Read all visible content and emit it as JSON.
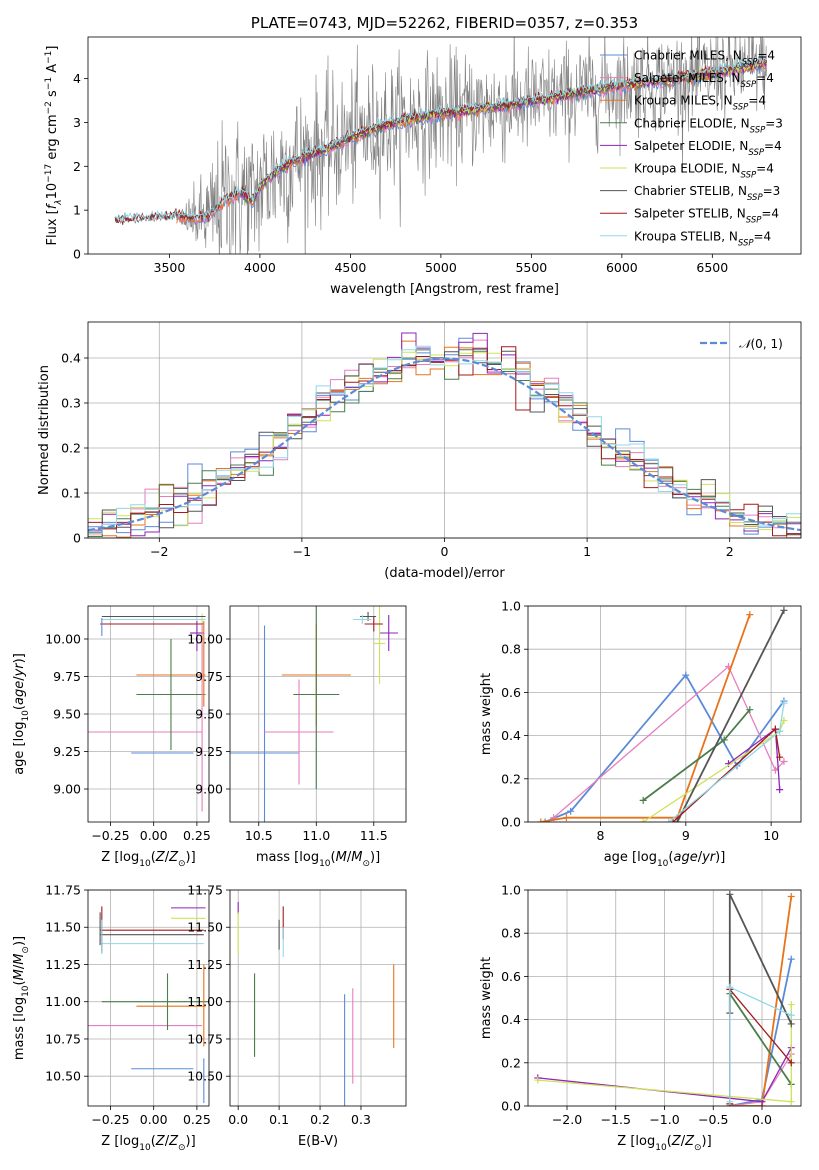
{
  "colors": {
    "Chabrier MILES": "#5b8bd8",
    "Salpeter MILES": "#e67ebd",
    "Kroupa MILES": "#e8731c",
    "Chabrier ELODIE": "#4b7d4b",
    "Salpeter ELODIE": "#8e24b8",
    "Kroupa ELODIE": "#cfe25a",
    "Chabrier STELIB": "#555555",
    "Salpeter STELIB": "#a31b1b",
    "Kroupa STELIB": "#8fd8e8",
    "data": "#808080"
  },
  "chart_data": [
    {
      "type": "line",
      "title": "PLATE=0743, MJD=52262, FIBERID=0357, z=0.353",
      "xlabel": "wavelength [Angstrom, rest frame]",
      "ylabel": "Flux [f_λ 10^-17 erg cm^-2 s^-1 A^-1]",
      "xlim": [
        3050,
        6990
      ],
      "ylim": [
        0,
        4.95
      ],
      "xticks": [
        3500,
        4000,
        4500,
        5000,
        5500,
        6000,
        6500
      ],
      "yticks": [
        0,
        1,
        2,
        3,
        4
      ],
      "legend_position": "upper right",
      "legend": [
        {
          "name": "Chabrier MILES, N_SSP=4",
          "prefix": "Chabrier MILES, N",
          "sub": "SSP",
          "suffix": "=4"
        },
        {
          "name": "Salpeter MILES, N_SSP=4",
          "prefix": "Salpeter MILES, N",
          "sub": "SSP",
          "suffix": "=4"
        },
        {
          "name": "Kroupa MILES, N_SSP=4",
          "prefix": "Kroupa MILES, N",
          "sub": "SSP",
          "suffix": "=4"
        },
        {
          "name": "Chabrier ELODIE, N_SSP=3",
          "prefix": "Chabrier ELODIE, N",
          "sub": "SSP",
          "suffix": "=3"
        },
        {
          "name": "Salpeter ELODIE, N_SSP=4",
          "prefix": "Salpeter ELODIE, N",
          "sub": "SSP",
          "suffix": "=4"
        },
        {
          "name": "Kroupa ELODIE, N_SSP=4",
          "prefix": "Kroupa ELODIE, N",
          "sub": "SSP",
          "suffix": "=4"
        },
        {
          "name": "Chabrier STELIB, N_SSP=3",
          "prefix": "Chabrier STELIB, N",
          "sub": "SSP",
          "suffix": "=3"
        },
        {
          "name": "Salpeter STELIB, N_SSP=4",
          "prefix": "Salpeter STELIB, N",
          "sub": "SSP",
          "suffix": "=4"
        },
        {
          "name": "Kroupa STELIB, N_SSP=4",
          "prefix": "Kroupa STELIB, N",
          "sub": "SSP",
          "suffix": "=4"
        }
      ],
      "model_ranges": {
        "Chabrier MILES": [
          3540,
          6800
        ],
        "Salpeter MILES": [
          3540,
          6800
        ],
        "Kroupa MILES": [
          3540,
          6800
        ],
        "Chabrier ELODIE": [
          3900,
          6800
        ],
        "Salpeter ELODIE": [
          3900,
          6800
        ],
        "Kroupa ELODIE": [
          3900,
          6800
        ],
        "Chabrier STELIB": [
          3200,
          6800
        ],
        "Salpeter STELIB": [
          3200,
          6800
        ],
        "Kroupa STELIB": [
          3200,
          6800
        ]
      },
      "continuum": {
        "x": [
          3200,
          3400,
          3540,
          3650,
          3720,
          3800,
          3900,
          3960,
          4000,
          4100,
          4200,
          4300,
          4400,
          4500,
          4700,
          4860,
          5000,
          5200,
          5400,
          5600,
          5800,
          6000,
          6200,
          6400,
          6600,
          6800
        ],
        "y": [
          0.75,
          0.8,
          0.85,
          0.8,
          0.85,
          1.2,
          1.4,
          1.2,
          1.55,
          1.9,
          2.15,
          2.3,
          2.45,
          2.65,
          2.95,
          3.1,
          3.2,
          3.3,
          3.4,
          3.55,
          3.7,
          3.85,
          3.95,
          4.05,
          4.2,
          4.35
        ]
      },
      "data_range": [
        3200,
        6800
      ],
      "data_noise_sigma": {
        "x": [
          3540,
          3800,
          4500,
          5500,
          6200,
          6800
        ],
        "y": [
          0.02,
          0.9,
          0.75,
          0.6,
          0.55,
          0.5
        ]
      }
    },
    {
      "type": "step",
      "xlabel": "(data-model)/error",
      "ylabel": "Normed distribution",
      "xlim": [
        -2.5,
        2.5
      ],
      "ylim": [
        0,
        0.48
      ],
      "xticks": [
        -2,
        -1,
        0,
        1,
        2
      ],
      "yticks": [
        0.0,
        0.1,
        0.2,
        0.3,
        0.4
      ],
      "grid": true,
      "bin_width": 0.1,
      "legend_position": "upper right",
      "reference": {
        "name": "N(0,1)",
        "color": "#5b8bd8",
        "style": "dashed"
      }
    },
    {
      "type": "errorbar",
      "xlabel": "Z [log10(Z/Z_sun)]",
      "ylabel": "age [log10(age/yr)]",
      "xlim": [
        -0.38,
        0.32
      ],
      "ylim": [
        8.78,
        10.22
      ],
      "xticks": [
        -0.25,
        0.0,
        0.25
      ],
      "xticklabels": [
        "−0.25",
        "0.00",
        "0.25"
      ],
      "yticks": [
        9.0,
        9.25,
        9.5,
        9.75,
        10.0
      ],
      "yticklabels": [
        "9.00",
        "9.25",
        "9.50",
        "9.75",
        "10.00"
      ],
      "grid": true,
      "points": [
        {
          "model": "Chabrier MILES",
          "x": 0.05,
          "xerr": 0.18,
          "y": 9.24,
          "yerr": 0.0
        },
        {
          "model": "Salpeter MILES",
          "x": -0.07,
          "xerr": 0.35,
          "y": 9.38,
          "yerr": 0.0
        },
        {
          "model": "Kroupa MILES",
          "x": 0.1,
          "xerr": 0.2,
          "y": 9.76,
          "yerr": 0.0
        },
        {
          "model": "Chabrier ELODIE",
          "x": 0.1,
          "xerr": 0.2,
          "y": 9.63,
          "yerr": 0.37
        },
        {
          "model": "Salpeter ELODIE",
          "x": 0.25,
          "xerr": 0.04,
          "y": 10.04,
          "yerr": 0.0
        },
        {
          "model": "Kroupa ELODIE",
          "x": 0.28,
          "xerr": 0.0,
          "y": 9.97,
          "yerr": 0.2
        },
        {
          "model": "Chabrier STELIB",
          "x": 0.0,
          "xerr": 0.3,
          "y": 10.15,
          "yerr": 0.0
        },
        {
          "model": "Salpeter STELIB",
          "x": -0.01,
          "xerr": 0.3,
          "y": 10.1,
          "yerr": 0.0
        },
        {
          "model": "Kroupa STELIB",
          "x": 0.0,
          "xerr": 0.3,
          "y": 10.13,
          "yerr": 0.0
        }
      ],
      "extra_vlines": [
        {
          "model": "Chabrier MILES",
          "x": -0.3,
          "y0": 10.02,
          "y1": 10.14
        },
        {
          "model": "Salpeter MILES",
          "x": 0.28,
          "y0": 8.85,
          "y1": 10.1
        },
        {
          "model": "Kroupa MILES",
          "x": 0.29,
          "y0": 9.55,
          "y1": 10.12
        },
        {
          "model": "Salpeter ELODIE",
          "x": 0.25,
          "y0": 9.92,
          "y1": 10.12
        }
      ]
    },
    {
      "type": "errorbar",
      "xlabel": "mass [log10(M/M_sun)]",
      "xlim": [
        10.25,
        11.78
      ],
      "ylim": [
        8.78,
        10.22
      ],
      "xticks": [
        10.5,
        11.0,
        11.5
      ],
      "xticklabels": [
        "10.5",
        "11.0",
        "11.5"
      ],
      "yticks": [
        9.0,
        9.25,
        9.5,
        9.75,
        10.0
      ],
      "yticklabels": [
        "9.00",
        "9.25",
        "9.50",
        "9.75",
        "10.00"
      ],
      "grid": true,
      "points": [
        {
          "model": "Chabrier MILES",
          "x": 10.55,
          "xerr": 0.3,
          "y": 9.24,
          "yerr": 0.85
        },
        {
          "model": "Salpeter MILES",
          "x": 10.85,
          "xerr": 0.3,
          "y": 9.38,
          "yerr": 0.35
        },
        {
          "model": "Kroupa MILES",
          "x": 11.0,
          "xerr": 0.3,
          "y": 9.76,
          "yerr": 0.34
        },
        {
          "model": "Chabrier ELODIE",
          "x": 11.0,
          "xerr": 0.2,
          "y": 9.63,
          "yerr": 0.63
        },
        {
          "model": "Salpeter ELODIE",
          "x": 11.63,
          "xerr": 0.08,
          "y": 10.04,
          "yerr": 0.12
        },
        {
          "model": "Kroupa ELODIE",
          "x": 11.55,
          "xerr": 0.05,
          "y": 9.97,
          "yerr": 0.27
        },
        {
          "model": "Chabrier STELIB",
          "x": 11.45,
          "xerr": 0.07,
          "y": 10.15,
          "yerr": 0.03
        },
        {
          "model": "Salpeter STELIB",
          "x": 11.5,
          "xerr": 0.08,
          "y": 10.1,
          "yerr": 0.05
        },
        {
          "model": "Kroupa STELIB",
          "x": 11.4,
          "xerr": 0.08,
          "y": 10.13,
          "yerr": 0.03
        }
      ]
    },
    {
      "type": "line",
      "xlabel": "age [log10(age/yr)]",
      "ylabel": "mass weight",
      "xlim": [
        7.15,
        10.35
      ],
      "ylim": [
        0,
        1.0
      ],
      "xticks": [
        8,
        9,
        10
      ],
      "xticklabels": [
        "8",
        "9",
        "10"
      ],
      "yticks": [
        0.0,
        0.2,
        0.4,
        0.6,
        0.8,
        1.0
      ],
      "yticklabels": [
        "0.0",
        "0.2",
        "0.4",
        "0.6",
        "0.8",
        "1.0"
      ],
      "grid": true,
      "markers": "plus",
      "series": [
        {
          "model": "Chabrier MILES",
          "x": [
            7.35,
            7.65,
            9.0,
            9.6,
            10.15
          ],
          "y": [
            0.0,
            0.05,
            0.68,
            0.26,
            0.56
          ]
        },
        {
          "model": "Salpeter MILES",
          "x": [
            7.45,
            9.5,
            10.05,
            10.15
          ],
          "y": [
            0.02,
            0.72,
            0.24,
            0.28
          ]
        },
        {
          "model": "Kroupa MILES",
          "x": [
            7.3,
            7.6,
            8.9,
            9.75
          ],
          "y": [
            0.0,
            0.02,
            0.02,
            0.96
          ]
        },
        {
          "model": "Chabrier ELODIE",
          "x": [
            8.5,
            9.45,
            9.75
          ],
          "y": [
            0.1,
            0.38,
            0.52
          ]
        },
        {
          "model": "Salpeter ELODIE",
          "x": [
            9.5,
            10.05,
            10.1
          ],
          "y": [
            0.27,
            0.43,
            0.15
          ]
        },
        {
          "model": "Kroupa ELODIE",
          "x": [
            8.5,
            10.1,
            10.15
          ],
          "y": [
            0.0,
            0.42,
            0.47
          ]
        },
        {
          "model": "Chabrier STELIB",
          "x": [
            8.9,
            10.15
          ],
          "y": [
            0.0,
            0.98
          ]
        },
        {
          "model": "Salpeter STELIB",
          "x": [
            8.85,
            10.05,
            10.1
          ],
          "y": [
            0.0,
            0.43,
            0.3
          ]
        },
        {
          "model": "Kroupa STELIB",
          "x": [
            8.8,
            10.1,
            10.15
          ],
          "y": [
            0.0,
            0.42,
            0.55
          ]
        }
      ]
    },
    {
      "type": "errorbar",
      "xlabel": "Z [log10(Z/Z_sun)]",
      "ylabel": "mass [log10(M/M_sun)]",
      "xlim": [
        -0.38,
        0.32
      ],
      "ylim": [
        10.3,
        11.75
      ],
      "xticks": [
        -0.25,
        0.0,
        0.25
      ],
      "xticklabels": [
        "−0.25",
        "0.00",
        "0.25"
      ],
      "yticks": [
        10.5,
        10.75,
        11.0,
        11.25,
        11.5,
        11.75
      ],
      "yticklabels": [
        "10.50",
        "10.75",
        "11.00",
        "11.25",
        "11.50",
        "11.75"
      ],
      "grid": true,
      "points": [
        {
          "model": "Chabrier MILES",
          "x": 0.05,
          "xerr": 0.18,
          "y": 10.55,
          "yerr": 0.0
        },
        {
          "model": "Salpeter MILES",
          "x": -0.07,
          "xerr": 0.35,
          "y": 10.84,
          "yerr": 0.0
        },
        {
          "model": "Kroupa MILES",
          "x": 0.1,
          "xerr": 0.2,
          "y": 10.97,
          "yerr": 0.0
        },
        {
          "model": "Chabrier ELODIE",
          "x": 0.08,
          "xerr": 0.38,
          "y": 11.0,
          "yerr": 0.19
        },
        {
          "model": "Salpeter ELODIE",
          "x": 0.2,
          "xerr": 0.1,
          "y": 11.63,
          "yerr": 0.0
        },
        {
          "model": "Kroupa ELODIE",
          "x": 0.2,
          "xerr": 0.1,
          "y": 11.56,
          "yerr": 0.0
        },
        {
          "model": "Chabrier STELIB",
          "x": -0.01,
          "xerr": 0.3,
          "y": 11.45,
          "yerr": 0.0
        },
        {
          "model": "Salpeter STELIB",
          "x": -0.01,
          "xerr": 0.3,
          "y": 11.48,
          "yerr": 0.0
        },
        {
          "model": "Kroupa STELIB",
          "x": -0.01,
          "xerr": 0.3,
          "y": 11.39,
          "yerr": 0.0
        }
      ],
      "extra_vlines": [
        {
          "model": "Chabrier MILES",
          "x": 0.29,
          "y0": 10.32,
          "y1": 10.62
        },
        {
          "model": "Kroupa MILES",
          "x": 0.29,
          "y0": 10.7,
          "y1": 11.25
        },
        {
          "model": "Salpeter STELIB",
          "x": -0.3,
          "y0": 11.33,
          "y1": 11.64
        },
        {
          "model": "Chabrier STELIB",
          "x": -0.31,
          "y0": 11.38,
          "y1": 11.6
        },
        {
          "model": "Kroupa STELIB",
          "x": -0.3,
          "y0": 11.32,
          "y1": 11.55
        }
      ]
    },
    {
      "type": "errorbar",
      "xlabel": "E(B-V)",
      "xlim": [
        -0.02,
        0.41
      ],
      "ylim": [
        10.3,
        11.75
      ],
      "xticks": [
        0.0,
        0.1,
        0.2,
        0.3
      ],
      "xticklabels": [
        "0.0",
        "0.1",
        "0.2",
        "0.3"
      ],
      "yticks": [
        10.5,
        10.75,
        11.0,
        11.25,
        11.5,
        11.75
      ],
      "yticklabels": [
        "10.50",
        "10.75",
        "11.00",
        "11.25",
        "11.50",
        "11.75"
      ],
      "grid": true,
      "points": [
        {
          "model": "Chabrier MILES",
          "x": 0.26,
          "xerr": 0.0,
          "y": 10.6,
          "yerr": 0.45
        },
        {
          "model": "Salpeter MILES",
          "x": 0.28,
          "xerr": 0.0,
          "y": 10.77,
          "yerr": 0.32
        },
        {
          "model": "Kroupa MILES",
          "x": 0.38,
          "xerr": 0.0,
          "y": 10.97,
          "yerr": 0.28
        },
        {
          "model": "Chabrier ELODIE",
          "x": 0.04,
          "xerr": 0.0,
          "y": 10.91,
          "yerr": 0.28
        },
        {
          "model": "Salpeter ELODIE",
          "x": 0.0,
          "xerr": 0.0,
          "y": 11.63,
          "yerr": 0.04
        },
        {
          "model": "Kroupa ELODIE",
          "x": 0.0,
          "xerr": 0.0,
          "y": 11.46,
          "yerr": 0.14
        },
        {
          "model": "Chabrier STELIB",
          "x": 0.1,
          "xerr": 0.0,
          "y": 11.45,
          "yerr": 0.1
        },
        {
          "model": "Salpeter STELIB",
          "x": 0.11,
          "xerr": 0.0,
          "y": 11.53,
          "yerr": 0.11
        },
        {
          "model": "Kroupa STELIB",
          "x": 0.11,
          "xerr": 0.0,
          "y": 11.4,
          "yerr": 0.1
        }
      ]
    },
    {
      "type": "line",
      "xlabel": "Z [log10(Z/Z_sun)]",
      "ylabel": "mass weight",
      "xlim": [
        -2.4,
        0.4
      ],
      "ylim": [
        0,
        1.0
      ],
      "xticks": [
        -2.0,
        -1.5,
        -1.0,
        -0.5,
        0.0
      ],
      "xticklabels": [
        "−2.0",
        "−1.5",
        "−1.0",
        "−0.5",
        "0.0"
      ],
      "yticks": [
        0.0,
        0.2,
        0.4,
        0.6,
        0.8,
        1.0
      ],
      "yticklabels": [
        "0.0",
        "0.2",
        "0.4",
        "0.6",
        "0.8",
        "1.0"
      ],
      "grid": true,
      "markers": "plus",
      "series": [
        {
          "model": "Chabrier MILES",
          "x": [
            -0.33,
            0.0,
            0.3
          ],
          "y": [
            0.0,
            0.03,
            0.68
          ]
        },
        {
          "model": "Salpeter MILES",
          "x": [
            -0.33,
            0.0,
            0.3
          ],
          "y": [
            0.0,
            0.02,
            0.24
          ]
        },
        {
          "model": "Kroupa MILES",
          "x": [
            -0.33,
            0.0,
            0.3
          ],
          "y": [
            0.0,
            0.0,
            0.97
          ]
        },
        {
          "model": "Chabrier ELODIE",
          "x": [
            -0.33,
            0.3
          ],
          "y": [
            0.52,
            0.1
          ]
        },
        {
          "model": "Salpeter ELODIE",
          "x": [
            -2.3,
            0.0,
            0.3
          ],
          "y": [
            0.13,
            0.02,
            0.27
          ]
        },
        {
          "model": "Kroupa ELODIE",
          "x": [
            -2.3,
            0.3,
            0.3
          ],
          "y": [
            0.12,
            0.02,
            0.47
          ]
        },
        {
          "model": "Chabrier STELIB",
          "x": [
            -0.33,
            -0.33,
            0.3
          ],
          "y": [
            0.43,
            0.98,
            0.38
          ]
        },
        {
          "model": "Salpeter STELIB",
          "x": [
            -0.33,
            -0.33,
            0.3
          ],
          "y": [
            0.01,
            0.54,
            0.2
          ]
        },
        {
          "model": "Kroupa STELIB",
          "x": [
            -0.33,
            -0.33,
            0.3
          ],
          "y": [
            0.02,
            0.55,
            0.42
          ]
        }
      ]
    }
  ]
}
